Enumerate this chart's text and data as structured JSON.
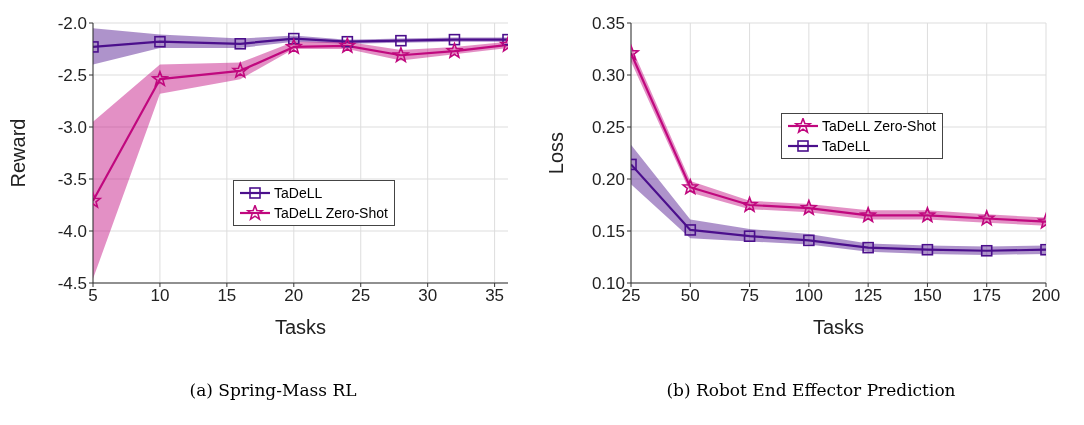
{
  "chart_data": [
    {
      "type": "line",
      "title": "(a) Spring-Mass RL",
      "xlabel": "Tasks",
      "ylabel": "Reward",
      "x": [
        5,
        10,
        16,
        20,
        24,
        28,
        32,
        36
      ],
      "series": [
        {
          "name": "TaDeLL",
          "color": "#4b0f8c",
          "marker": "square",
          "values": [
            -2.23,
            -2.18,
            -2.2,
            -2.15,
            -2.18,
            -2.17,
            -2.16,
            -2.16
          ],
          "lower": [
            -2.4,
            -2.24,
            -2.24,
            -2.18,
            -2.2,
            -2.19,
            -2.18,
            -2.18
          ],
          "upper": [
            -2.05,
            -2.11,
            -2.15,
            -2.12,
            -2.16,
            -2.15,
            -2.14,
            -2.14
          ]
        },
        {
          "name": "TaDeLL Zero-Shot",
          "color": "#c0087e",
          "marker": "star",
          "values": [
            -3.71,
            -2.54,
            -2.46,
            -2.23,
            -2.22,
            -2.31,
            -2.27,
            -2.21
          ],
          "lower": [
            -4.46,
            -2.68,
            -2.54,
            -2.25,
            -2.25,
            -2.36,
            -2.3,
            -2.24
          ],
          "upper": [
            -2.95,
            -2.4,
            -2.38,
            -2.18,
            -2.18,
            -2.26,
            -2.23,
            -2.18
          ]
        }
      ],
      "xlim": [
        5,
        36
      ],
      "xticks": [
        5,
        10,
        15,
        20,
        25,
        30,
        35
      ],
      "ylim": [
        -4.5,
        -2.0
      ],
      "yticks": [
        {
          "value": -4.5,
          "label": "-4.5"
        },
        {
          "value": -4,
          "label": "-4.0"
        },
        {
          "value": -3.5,
          "label": "-3.5"
        },
        {
          "value": -3,
          "label": "-3.0"
        },
        {
          "value": -2.5,
          "label": "-2.5"
        },
        {
          "value": -2,
          "label": "-2.0"
        }
      ],
      "grid": true,
      "legend": "right",
      "line_style": "solid"
    },
    {
      "type": "line",
      "title": "(b) Robot End Effector Prediction",
      "xlabel": "Tasks",
      "ylabel": "Loss",
      "x": [
        25,
        50,
        75,
        100,
        125,
        150,
        175,
        200
      ],
      "series": [
        {
          "name": "TaDeLL Zero-Shot",
          "color": "#c0087e",
          "marker": "star",
          "values": [
            0.321,
            0.192,
            0.175,
            0.172,
            0.165,
            0.165,
            0.162,
            0.159
          ],
          "lower": [
            0.313,
            0.187,
            0.171,
            0.168,
            0.161,
            0.161,
            0.158,
            0.155
          ],
          "upper": [
            0.328,
            0.198,
            0.179,
            0.176,
            0.17,
            0.17,
            0.166,
            0.163
          ]
        },
        {
          "name": "TaDeLL",
          "color": "#4b0f8c",
          "marker": "square",
          "values": [
            0.214,
            0.151,
            0.145,
            0.141,
            0.134,
            0.132,
            0.131,
            0.132
          ],
          "lower": [
            0.195,
            0.143,
            0.14,
            0.137,
            0.13,
            0.128,
            0.127,
            0.128
          ],
          "upper": [
            0.233,
            0.161,
            0.152,
            0.147,
            0.138,
            0.136,
            0.135,
            0.136
          ]
        }
      ],
      "xlim": [
        25,
        200
      ],
      "xticks": [
        25,
        50,
        75,
        100,
        125,
        150,
        175,
        200
      ],
      "ylim": [
        0.1,
        0.35
      ],
      "yticks": [
        {
          "value": 0.1,
          "label": "0.10"
        },
        {
          "value": 0.15,
          "label": "0.15"
        },
        {
          "value": 0.2,
          "label": "0.20"
        },
        {
          "value": 0.25,
          "label": "0.25"
        },
        {
          "value": 0.3,
          "label": "0.30"
        },
        {
          "value": 0.35,
          "label": "0.35"
        }
      ],
      "grid": true,
      "legend": "top right",
      "line_style": "solid"
    }
  ]
}
